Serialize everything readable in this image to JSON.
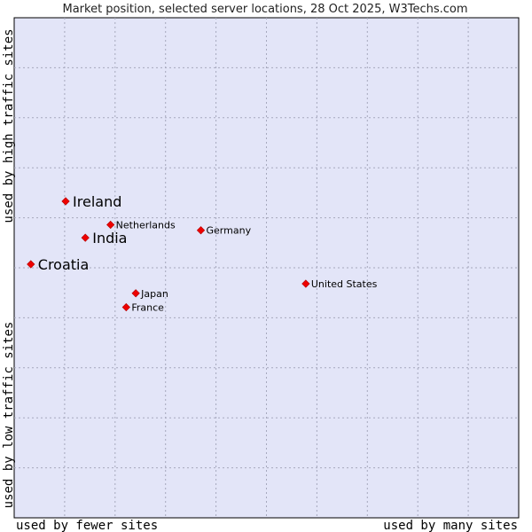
{
  "chart_data": {
    "type": "scatter",
    "title": "Market position, selected server locations, 28 Oct 2025, W3Techs.com",
    "x_axis": {
      "low_label": "used by fewer sites",
      "high_label": "used by many sites"
    },
    "y_axis": {
      "low_label": "used by low traffic sites",
      "high_label": "used by high traffic sites"
    },
    "xlim": [
      0,
      100
    ],
    "ylim": [
      0,
      100
    ],
    "grid": true,
    "points": [
      {
        "name": "Ireland",
        "x": 10.2,
        "y": 63.3,
        "highlight": true
      },
      {
        "name": "Netherlands",
        "x": 19.1,
        "y": 58.6,
        "highlight": false
      },
      {
        "name": "India",
        "x": 14.1,
        "y": 56.0,
        "highlight": true
      },
      {
        "name": "Germany",
        "x": 37.0,
        "y": 57.5,
        "highlight": false
      },
      {
        "name": "Croatia",
        "x": 3.3,
        "y": 50.7,
        "highlight": true
      },
      {
        "name": "United States",
        "x": 57.8,
        "y": 46.8,
        "highlight": false
      },
      {
        "name": "Japan",
        "x": 24.1,
        "y": 44.9,
        "highlight": false
      },
      {
        "name": "France",
        "x": 22.2,
        "y": 42.1,
        "highlight": false
      }
    ],
    "colors": {
      "plot_bg": "#e3e5f8",
      "grid": "#a6a8bd",
      "marker": "#ee0000",
      "frame": "#000000"
    }
  }
}
